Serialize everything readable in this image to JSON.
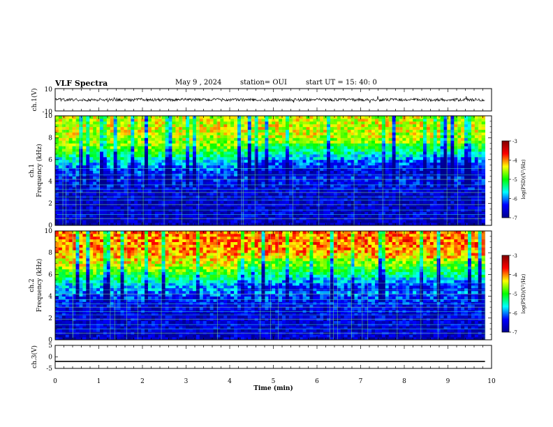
{
  "header": {
    "title": "VLF Spectra",
    "date": "May 9 , 2024",
    "station": "station= OUI",
    "start_time": "start UT = 15: 40: 0"
  },
  "panels": [
    {
      "ylabel": "ch.1(V)",
      "yticks": [
        "10",
        "-10"
      ]
    },
    {
      "ylabel_line1": "ch.1",
      "ylabel_line2": "Frequency (kHz)",
      "yticks": [
        "0",
        "2",
        "4",
        "6",
        "8",
        "10"
      ],
      "colorbar": {
        "ticks": [
          "-3",
          "-4",
          "-5",
          "-6",
          "-7"
        ],
        "label": "log(PSD)(V²/Hz)"
      }
    },
    {
      "ylabel_line1": "ch.2",
      "ylabel_line2": "Frequency (kHz)",
      "yticks": [
        "0",
        "2",
        "4",
        "6",
        "8",
        "10"
      ],
      "colorbar": {
        "ticks": [
          "-3",
          "-4",
          "-5",
          "-6",
          "-7"
        ],
        "label": "log(PSD)(V²/Hz)"
      }
    },
    {
      "ylabel": "ch.3(V)",
      "yticks": [
        "5",
        "0",
        "-5"
      ]
    }
  ],
  "xaxis": {
    "label": "Time (min)",
    "ticks": [
      "0",
      "1",
      "2",
      "3",
      "4",
      "5",
      "6",
      "7",
      "8",
      "9",
      "10"
    ]
  },
  "colors": {
    "colormap": [
      "#00008f",
      "#0000ff",
      "#00ffff",
      "#00ff00",
      "#ffff00",
      "#ff0000",
      "#800000"
    ]
  },
  "chart_data": [
    {
      "type": "line",
      "title": "ch.1(V)",
      "x_range": [
        0,
        9.85
      ],
      "ylim": [
        -10,
        10
      ],
      "baseline": 0
    },
    {
      "type": "heatmap",
      "title": "ch.1",
      "xlabel": "",
      "ylabel": "Frequency (kHz)",
      "xlim": [
        0,
        10
      ],
      "ylim": [
        0,
        10
      ],
      "data_x_max": 9.85,
      "colorbar_range": [
        -7,
        -3
      ],
      "z_profile": {
        "freq_khz": [
          0,
          1,
          2,
          3,
          4,
          5,
          6,
          7,
          8,
          9,
          10
        ],
        "log_psd": [
          -6.8,
          -6.6,
          -6.7,
          -6.6,
          -6.4,
          -6.2,
          -5.6,
          -4.8,
          -4.5,
          -4.4,
          -4.5
        ]
      }
    },
    {
      "type": "heatmap",
      "title": "ch.2",
      "xlabel": "",
      "ylabel": "Frequency (kHz)",
      "xlim": [
        0,
        10
      ],
      "ylim": [
        0,
        10
      ],
      "data_x_max": 9.85,
      "colorbar_range": [
        -7,
        -3
      ],
      "z_profile": {
        "freq_khz": [
          0,
          1,
          2,
          3,
          4,
          5,
          6,
          7,
          8,
          9,
          10
        ],
        "log_psd": [
          -6.7,
          -6.6,
          -6.6,
          -6.5,
          -6.2,
          -5.8,
          -5.0,
          -4.4,
          -4.1,
          -3.9,
          -4.0
        ]
      }
    },
    {
      "type": "line",
      "title": "ch.3(V)",
      "xlabel": "Time (min)",
      "x_range": [
        0,
        9.85
      ],
      "ylim": [
        -5,
        5
      ],
      "values_constant": -2
    }
  ]
}
